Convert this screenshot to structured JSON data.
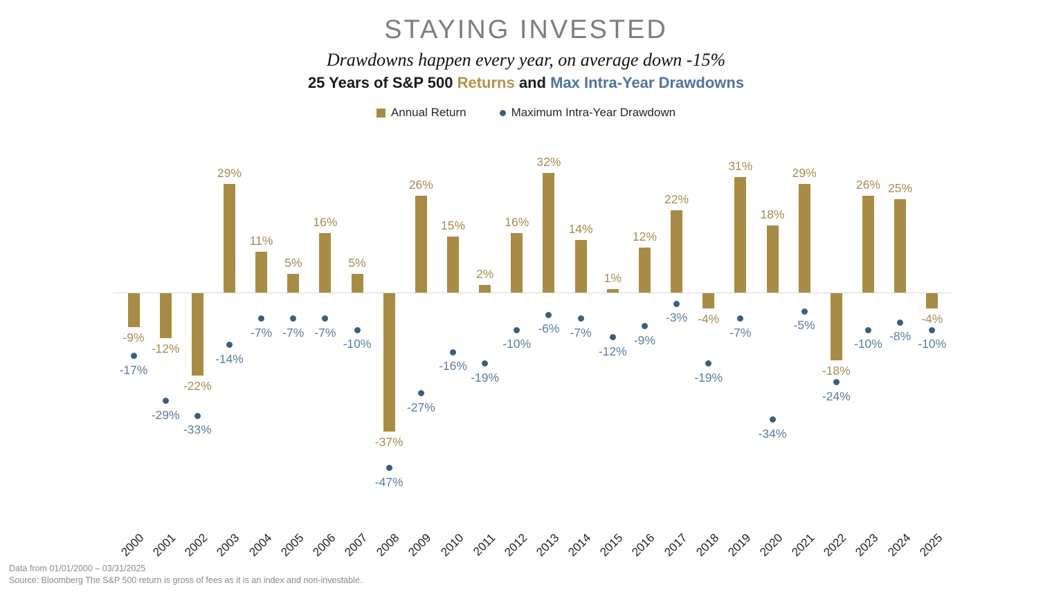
{
  "header": {
    "title": "STAYING INVESTED",
    "subtitle": "Drawdowns happen every year, on average down -15%",
    "heading_part1": "25 Years of S&P 500 ",
    "heading_part2": "Returns",
    "heading_part3": " and ",
    "heading_part4": "Max Intra-Year Drawdowns"
  },
  "legend": {
    "annual_return_label": "Annual Return",
    "drawdown_label": "Maximum Intra-Year Drawdown"
  },
  "chart_data": {
    "type": "bar",
    "title": "25 Years of S&P 500 Returns and Max Intra-Year Drawdowns",
    "categories": [
      "2000",
      "2001",
      "2002",
      "2003",
      "2004",
      "2005",
      "2006",
      "2007",
      "2008",
      "2009",
      "2010",
      "2011",
      "2012",
      "2013",
      "2014",
      "2015",
      "2016",
      "2017",
      "2018",
      "2019",
      "2020",
      "2021",
      "2022",
      "2023",
      "2024",
      "2025"
    ],
    "series": [
      {
        "name": "Annual Return",
        "style": "bar",
        "unit": "%",
        "values": [
          -9,
          -12,
          -22,
          29,
          11,
          5,
          16,
          5,
          -37,
          26,
          15,
          2,
          16,
          32,
          14,
          1,
          12,
          22,
          -4,
          31,
          18,
          29,
          -18,
          26,
          25,
          -4
        ]
      },
      {
        "name": "Maximum Intra-Year Drawdown",
        "style": "point",
        "unit": "%",
        "values": [
          -17,
          -29,
          -33,
          -14,
          -7,
          -7,
          -7,
          -10,
          -47,
          -27,
          -16,
          -19,
          -10,
          -6,
          -7,
          -12,
          -9,
          -3,
          -19,
          -7,
          -34,
          -5,
          -24,
          -10,
          -8,
          -10
        ]
      }
    ],
    "ylim": [
      -50,
      35
    ],
    "grid": false,
    "legend_position": "top",
    "colors": {
      "bar": "#a88c46",
      "bar_label": "#a58d52",
      "dot": "#3b5e83",
      "dot_label": "#5b7da3"
    }
  },
  "footer": {
    "line1": "Data from 01/01/2000 – 03/31/2025",
    "line2": "Source: Bloomberg The S&P 500 return is gross of fees as it is an index and non-investable."
  }
}
